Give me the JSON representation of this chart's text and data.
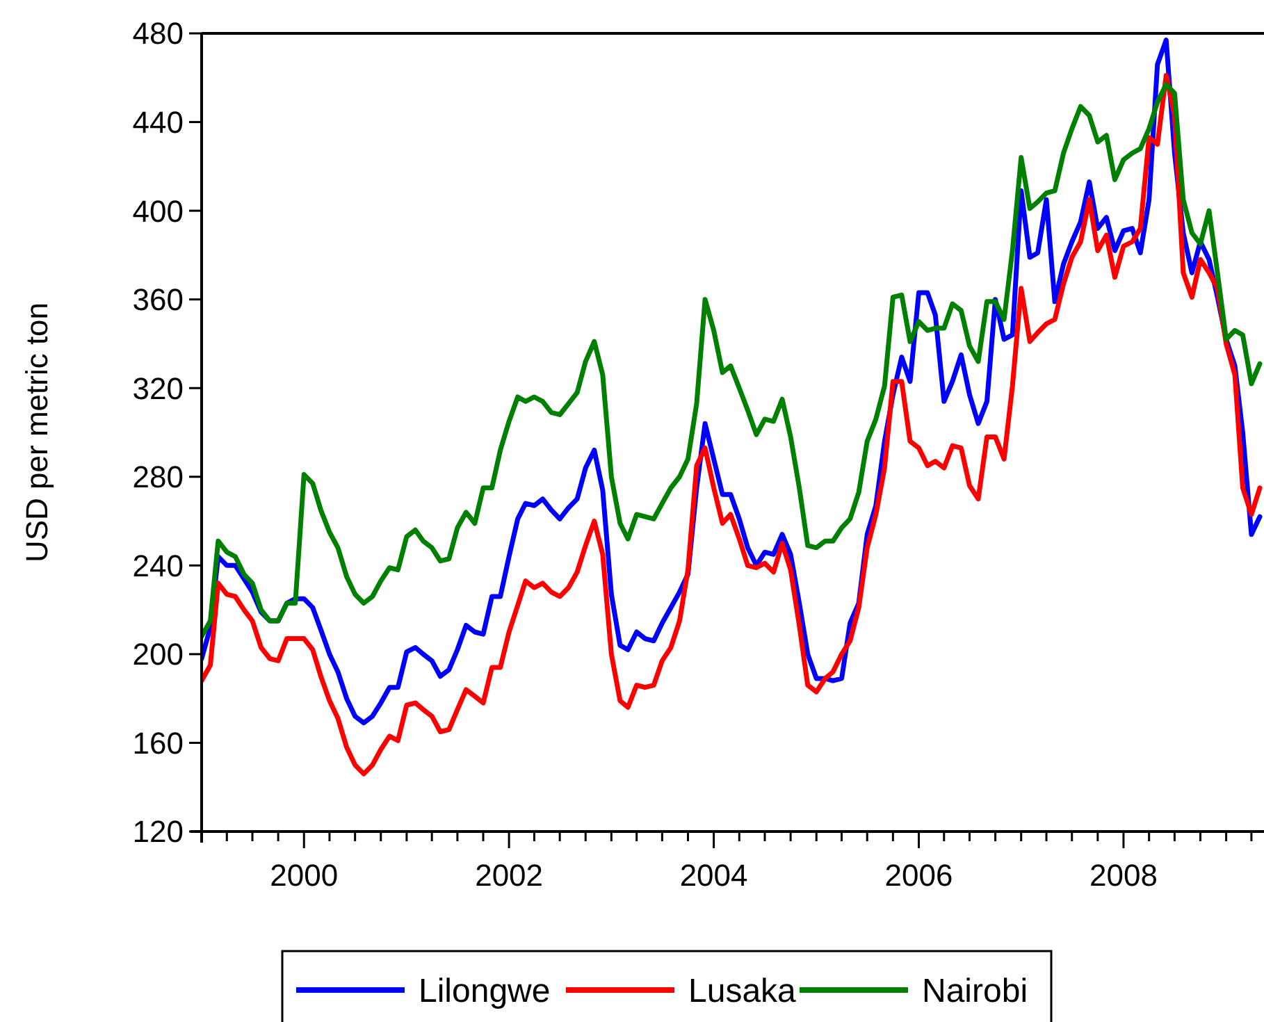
{
  "chart_data": {
    "type": "line",
    "ylabel": "USD per metric ton",
    "x": [
      "1999-01",
      "1999-02",
      "1999-03",
      "1999-04",
      "1999-05",
      "1999-06",
      "1999-07",
      "1999-08",
      "1999-09",
      "1999-10",
      "1999-11",
      "1999-12",
      "2000-01",
      "2000-02",
      "2000-03",
      "2000-04",
      "2000-05",
      "2000-06",
      "2000-07",
      "2000-08",
      "2000-09",
      "2000-10",
      "2000-11",
      "2000-12",
      "2001-01",
      "2001-02",
      "2001-03",
      "2001-04",
      "2001-05",
      "2001-06",
      "2001-07",
      "2001-08",
      "2001-09",
      "2001-10",
      "2001-11",
      "2001-12",
      "2002-01",
      "2002-02",
      "2002-03",
      "2002-04",
      "2002-05",
      "2002-06",
      "2002-07",
      "2002-08",
      "2002-09",
      "2002-10",
      "2002-11",
      "2002-12",
      "2003-01",
      "2003-02",
      "2003-03",
      "2003-04",
      "2003-05",
      "2003-06",
      "2003-07",
      "2003-08",
      "2003-09",
      "2003-10",
      "2003-11",
      "2003-12",
      "2004-01",
      "2004-02",
      "2004-03",
      "2004-04",
      "2004-05",
      "2004-06",
      "2004-07",
      "2004-08",
      "2004-09",
      "2004-10",
      "2004-11",
      "2004-12",
      "2005-01",
      "2005-02",
      "2005-03",
      "2005-04",
      "2005-05",
      "2005-06",
      "2005-07",
      "2005-08",
      "2005-09",
      "2005-10",
      "2005-11",
      "2005-12",
      "2006-01",
      "2006-02",
      "2006-03",
      "2006-04",
      "2006-05",
      "2006-06",
      "2006-07",
      "2006-08",
      "2006-09",
      "2006-10",
      "2006-11",
      "2006-12",
      "2007-01",
      "2007-02",
      "2007-03",
      "2007-04",
      "2007-05",
      "2007-06",
      "2007-07",
      "2007-08",
      "2007-09",
      "2007-10",
      "2007-11",
      "2007-12",
      "2008-01",
      "2008-02",
      "2008-03",
      "2008-04",
      "2008-05",
      "2008-06",
      "2008-07",
      "2008-08",
      "2008-09",
      "2008-10",
      "2008-11",
      "2008-12",
      "2009-01",
      "2009-02",
      "2009-03",
      "2009-04",
      "2009-05"
    ],
    "series": [
      {
        "name": "Lilongwe",
        "color": "#0000ff",
        "values": [
          198,
          212,
          244,
          240,
          240,
          234,
          228,
          219,
          215,
          215,
          223,
          225,
          225,
          221,
          211,
          200,
          192,
          180,
          172,
          169,
          172,
          178,
          185,
          185,
          201,
          203,
          200,
          197,
          190,
          193,
          202,
          213,
          210,
          209,
          226,
          226,
          244,
          261,
          268,
          267,
          270,
          265,
          261,
          266,
          270,
          284,
          292,
          274,
          227,
          204,
          202,
          210,
          207,
          206,
          214,
          221,
          228,
          236,
          275,
          304,
          288,
          272,
          272,
          261,
          248,
          240,
          246,
          245,
          254,
          245,
          223,
          200,
          189,
          189,
          188,
          189,
          214,
          223,
          254,
          267,
          296,
          317,
          334,
          323,
          363,
          363,
          353,
          314,
          323,
          335,
          317,
          304,
          314,
          360,
          342,
          344,
          409,
          379,
          381,
          405,
          359,
          376,
          386,
          395,
          413,
          392,
          397,
          382,
          391,
          392,
          381,
          405,
          466,
          477,
          426,
          390,
          372,
          386,
          378,
          361,
          342,
          330,
          300,
          254,
          262
        ]
      },
      {
        "name": "Lusaka",
        "color": "#ff0000",
        "values": [
          188,
          195,
          232,
          227,
          226,
          220,
          215,
          203,
          198,
          197,
          207,
          207,
          207,
          202,
          190,
          179,
          171,
          158,
          150,
          146,
          150,
          157,
          163,
          161,
          177,
          178,
          175,
          172,
          165,
          166,
          175,
          184,
          181,
          178,
          194,
          194,
          210,
          222,
          233,
          230,
          232,
          228,
          226,
          230,
          237,
          249,
          260,
          245,
          200,
          179,
          176,
          186,
          185,
          186,
          197,
          203,
          215,
          238,
          285,
          293,
          275,
          259,
          263,
          252,
          240,
          239,
          241,
          237,
          250,
          238,
          213,
          186,
          183,
          189,
          192,
          200,
          206,
          221,
          248,
          263,
          284,
          323,
          323,
          296,
          293,
          285,
          287,
          284,
          294,
          293,
          276,
          270,
          298,
          298,
          288,
          321,
          365,
          341,
          345,
          349,
          351,
          367,
          379,
          386,
          405,
          382,
          389,
          370,
          384,
          386,
          392,
          433,
          430,
          461,
          443,
          372,
          361,
          378,
          372,
          365,
          340,
          326,
          275,
          263,
          275
        ]
      },
      {
        "name": "Nairobi",
        "color": "#008000",
        "values": [
          208,
          215,
          251,
          246,
          244,
          236,
          232,
          220,
          215,
          215,
          223,
          223,
          281,
          277,
          265,
          255,
          248,
          235,
          227,
          223,
          226,
          233,
          239,
          238,
          253,
          256,
          251,
          248,
          242,
          243,
          257,
          264,
          259,
          275,
          275,
          292,
          305,
          316,
          314,
          316,
          314,
          309,
          308,
          313,
          318,
          332,
          341,
          326,
          280,
          259,
          252,
          263,
          262,
          261,
          268,
          275,
          280,
          288,
          313,
          360,
          346,
          327,
          330,
          320,
          310,
          299,
          306,
          305,
          315,
          298,
          275,
          249,
          248,
          251,
          251,
          257,
          261,
          273,
          296,
          306,
          321,
          361,
          362,
          341,
          350,
          346,
          347,
          347,
          358,
          355,
          339,
          332,
          359,
          359,
          351,
          382,
          424,
          401,
          404,
          408,
          409,
          426,
          437,
          447,
          443,
          431,
          434,
          414,
          423,
          426,
          428,
          437,
          449,
          457,
          453,
          405,
          390,
          385,
          400,
          372,
          342,
          346,
          344,
          322,
          331
        ]
      }
    ],
    "xlim": [
      "1999-01",
      "2009-05"
    ],
    "xticks": [
      {
        "value": "1999-04",
        "label": null
      },
      {
        "value": "1999-07",
        "label": null
      },
      {
        "value": "1999-10",
        "label": null
      },
      {
        "value": "2000-01",
        "label": "2000"
      },
      {
        "value": "2000-04",
        "label": null
      },
      {
        "value": "2000-07",
        "label": null
      },
      {
        "value": "2000-10",
        "label": null
      },
      {
        "value": "2001-01",
        "label": null
      },
      {
        "value": "2001-04",
        "label": null
      },
      {
        "value": "2001-07",
        "label": null
      },
      {
        "value": "2001-10",
        "label": null
      },
      {
        "value": "2002-01",
        "label": "2002"
      },
      {
        "value": "2002-04",
        "label": null
      },
      {
        "value": "2002-07",
        "label": null
      },
      {
        "value": "2002-10",
        "label": null
      },
      {
        "value": "2003-01",
        "label": null
      },
      {
        "value": "2003-04",
        "label": null
      },
      {
        "value": "2003-07",
        "label": null
      },
      {
        "value": "2003-10",
        "label": null
      },
      {
        "value": "2004-01",
        "label": "2004"
      },
      {
        "value": "2004-04",
        "label": null
      },
      {
        "value": "2004-07",
        "label": null
      },
      {
        "value": "2004-10",
        "label": null
      },
      {
        "value": "2005-01",
        "label": null
      },
      {
        "value": "2005-04",
        "label": null
      },
      {
        "value": "2005-07",
        "label": null
      },
      {
        "value": "2005-10",
        "label": null
      },
      {
        "value": "2006-01",
        "label": "2006"
      },
      {
        "value": "2006-04",
        "label": null
      },
      {
        "value": "2006-07",
        "label": null
      },
      {
        "value": "2006-10",
        "label": null
      },
      {
        "value": "2007-01",
        "label": null
      },
      {
        "value": "2007-04",
        "label": null
      },
      {
        "value": "2007-07",
        "label": null
      },
      {
        "value": "2007-10",
        "label": null
      },
      {
        "value": "2008-01",
        "label": "2008"
      },
      {
        "value": "2008-04",
        "label": null
      },
      {
        "value": "2008-07",
        "label": null
      },
      {
        "value": "2008-10",
        "label": null
      },
      {
        "value": "2009-01",
        "label": null
      },
      {
        "value": "2009-04",
        "label": null
      }
    ],
    "ylim": [
      120,
      480
    ],
    "yticks": [
      120,
      160,
      200,
      240,
      280,
      320,
      360,
      400,
      440,
      480
    ],
    "grid": false,
    "legend": "bottom",
    "line_style": "solid",
    "marker": "none"
  }
}
